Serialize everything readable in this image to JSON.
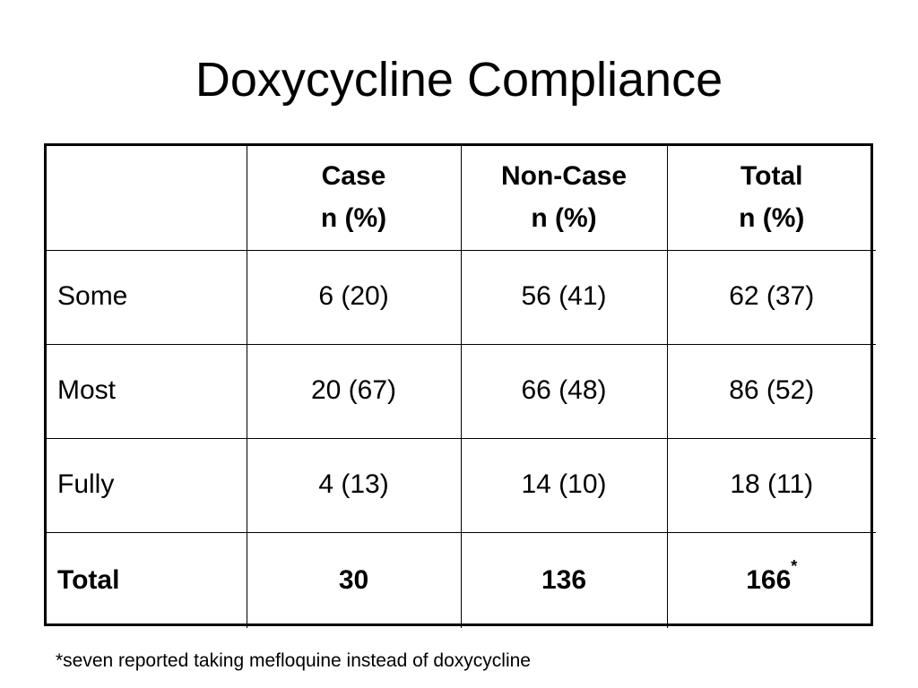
{
  "title": "Doxycycline Compliance",
  "table": {
    "header": {
      "corner": "",
      "columns": [
        {
          "name": "Case",
          "unit": "n (%)"
        },
        {
          "name": "Non-Case",
          "unit": "n (%)"
        },
        {
          "name": "Total",
          "unit": "n (%)"
        }
      ]
    },
    "rows": [
      {
        "label": "Some",
        "case": "6 (20)",
        "noncase": "56 (41)",
        "total": "62 (37)"
      },
      {
        "label": "Most",
        "case": "20 (67)",
        "noncase": "66 (48)",
        "total": "86 (52)"
      },
      {
        "label": "Fully",
        "case": "4 (13)",
        "noncase": "14 (10)",
        "total": "18 (11)"
      }
    ],
    "total_row": {
      "label": "Total",
      "case": "30",
      "noncase": "136",
      "total": "166",
      "total_marker": "*"
    }
  },
  "footnote": "*seven reported taking mefloquine instead of doxycycline"
}
